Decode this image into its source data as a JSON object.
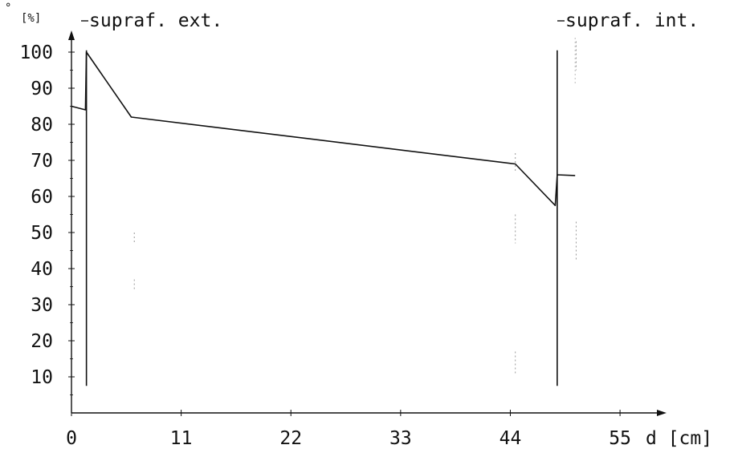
{
  "chart_data": {
    "type": "line",
    "title": "",
    "xlabel": "d [cm]",
    "ylabel": "[%]",
    "xlim": [
      0,
      60
    ],
    "ylim": [
      0,
      105
    ],
    "x_ticks": [
      0,
      11,
      22,
      33,
      44,
      55
    ],
    "y_ticks": [
      10,
      20,
      30,
      40,
      50,
      60,
      70,
      80,
      90,
      100
    ],
    "grid": false,
    "series": [
      {
        "points": [
          [
            0,
            85
          ],
          [
            1.4,
            84
          ],
          [
            1.5,
            100
          ],
          [
            6,
            82
          ],
          [
            44.5,
            69
          ],
          [
            48.5,
            57.5
          ],
          [
            48.7,
            66
          ],
          [
            50.5,
            65.8
          ]
        ]
      }
    ],
    "boundaries": [
      1.5,
      48.7
    ],
    "annotations": [
      "supraf. ext.",
      "supraf. int."
    ]
  }
}
